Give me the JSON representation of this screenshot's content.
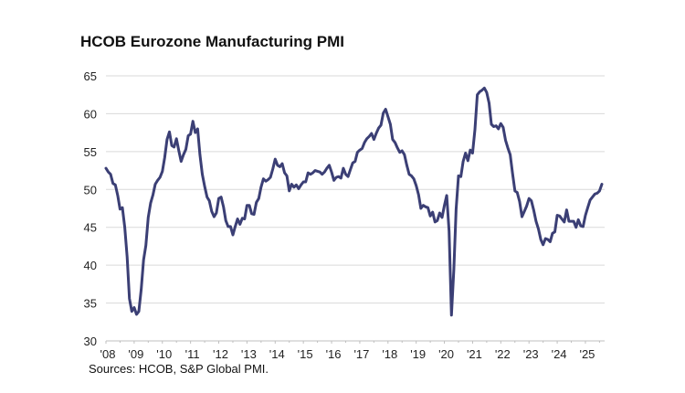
{
  "chart_data": {
    "type": "line",
    "title": "HCOB Eurozone Manufacturing PMI",
    "source": "Sources: HCOB,  S&P Global  PMI.",
    "xlabel": "",
    "ylabel": "",
    "ylim": [
      30,
      65
    ],
    "yticks": [
      "30",
      "35",
      "40",
      "45",
      "50",
      "55",
      "60",
      "65"
    ],
    "ytick_values": [
      30,
      35,
      40,
      45,
      50,
      55,
      60,
      65
    ],
    "xticks": [
      "'08",
      "'09",
      "'10",
      "'11",
      "'12",
      "'13",
      "'14",
      "'15",
      "'16",
      "'17",
      "'18",
      "'19",
      "'20",
      "'21",
      "'22",
      "'23",
      "'24",
      "'25"
    ],
    "xlim_years": [
      2008.0,
      2025.75
    ],
    "grid": true,
    "line_color": "#3b3f75",
    "start": "2008-01",
    "frequency": "monthly",
    "series": [
      {
        "name": "HCOB Eurozone Manufacturing PMI",
        "values": [
          52.8,
          52.3,
          52.0,
          50.8,
          50.6,
          49.2,
          47.4,
          47.6,
          45.0,
          41.1,
          35.6,
          33.9,
          34.4,
          33.5,
          33.9,
          36.8,
          40.7,
          42.6,
          46.3,
          48.2,
          49.3,
          50.7,
          51.2,
          51.6,
          52.4,
          54.2,
          56.6,
          57.6,
          55.8,
          55.6,
          56.7,
          55.1,
          53.7,
          54.6,
          55.3,
          57.1,
          57.3,
          59.0,
          57.5,
          58.0,
          54.6,
          52.0,
          50.4,
          49.0,
          48.5,
          47.1,
          46.4,
          46.9,
          48.8,
          49.0,
          47.7,
          45.9,
          45.1,
          45.1,
          44.0,
          45.1,
          46.1,
          45.4,
          46.2,
          46.1,
          47.9,
          47.9,
          46.8,
          46.7,
          48.3,
          48.8,
          50.3,
          51.4,
          51.1,
          51.3,
          51.6,
          52.7,
          54.0,
          53.2,
          53.0,
          53.4,
          52.2,
          51.8,
          49.8,
          50.7,
          50.3,
          50.6,
          50.1,
          50.6,
          51.0,
          51.0,
          52.2,
          52.0,
          52.2,
          52.5,
          52.4,
          52.3,
          52.0,
          52.3,
          52.8,
          53.2,
          52.3,
          51.2,
          51.6,
          51.7,
          51.5,
          52.8,
          52.0,
          51.7,
          52.6,
          53.5,
          53.7,
          54.9,
          55.2,
          55.4,
          56.2,
          56.7,
          57.0,
          57.4,
          56.6,
          57.4,
          58.1,
          58.5,
          60.1,
          60.6,
          59.6,
          58.6,
          56.6,
          56.2,
          55.5,
          54.9,
          55.1,
          54.6,
          53.2,
          52.0,
          51.8,
          51.4,
          50.5,
          49.3,
          47.5,
          47.9,
          47.7,
          47.6,
          46.5,
          47.0,
          45.7,
          45.9,
          46.9,
          46.3,
          47.9,
          49.2,
          44.5,
          33.4,
          39.4,
          47.4,
          51.8,
          51.7,
          53.7,
          54.8,
          53.8,
          55.2,
          54.8,
          57.9,
          62.5,
          62.9,
          63.1,
          63.4,
          62.8,
          61.4,
          58.6,
          58.3,
          58.4,
          58.0,
          58.7,
          58.2,
          56.5,
          55.5,
          54.6,
          52.1,
          49.8,
          49.6,
          48.4,
          46.4,
          47.1,
          47.8,
          48.8,
          48.5,
          47.3,
          45.8,
          44.8,
          43.4,
          42.7,
          43.5,
          43.4,
          43.1,
          44.2,
          44.4,
          46.6,
          46.5,
          46.1,
          45.7,
          47.3,
          45.8,
          45.8,
          45.8,
          45.0,
          46.0,
          45.2,
          45.1,
          46.6,
          47.6,
          48.6,
          49.0,
          49.4,
          49.5,
          49.8,
          50.7
        ]
      }
    ]
  }
}
